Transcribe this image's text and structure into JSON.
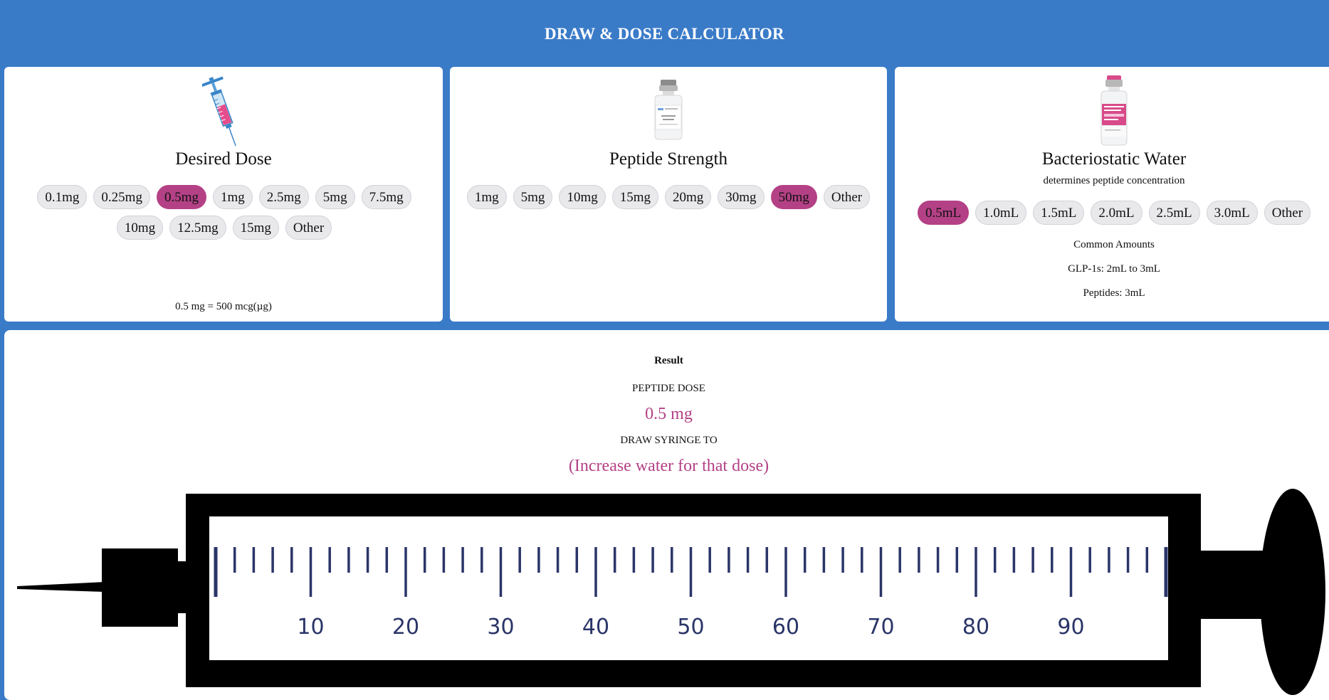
{
  "header": {
    "title": "DRAW & DOSE CALCULATOR"
  },
  "dose": {
    "title": "Desired Dose",
    "icon": "syringe-icon",
    "options": [
      "0.1mg",
      "0.25mg",
      "0.5mg",
      "1mg",
      "2.5mg",
      "5mg",
      "7.5mg",
      "10mg",
      "12.5mg",
      "15mg",
      "Other"
    ],
    "selected": "0.5mg",
    "conversion": "0.5 mg = 500 mcg(µg)"
  },
  "peptide": {
    "title": "Peptide Strength",
    "icon": "peptide-vial-icon",
    "options": [
      "1mg",
      "5mg",
      "10mg",
      "15mg",
      "20mg",
      "30mg",
      "50mg",
      "Other"
    ],
    "selected": "50mg"
  },
  "water": {
    "title": "Bacteriostatic Water",
    "subtitle": "determines peptide concentration",
    "icon": "bacteriostatic-water-vial-icon",
    "options": [
      "0.5mL",
      "1.0mL",
      "1.5mL",
      "2.0mL",
      "2.5mL",
      "3.0mL",
      "Other"
    ],
    "selected": "0.5mL",
    "common_heading": "Common Amounts",
    "common_glp": "GLP-1s: 2mL to 3mL",
    "common_peptides": "Peptides: 3mL"
  },
  "result": {
    "heading": "Result",
    "dose_label": "PEPTIDE DOSE",
    "dose_value": "0.5 mg",
    "draw_label": "DRAW SYRINGE TO",
    "draw_value": "(Increase water for that dose)",
    "syringe_labels": [
      "10",
      "20",
      "30",
      "40",
      "50",
      "60",
      "70",
      "80",
      "90"
    ]
  },
  "colors": {
    "header": "#3a7bc8",
    "accent": "#b44186",
    "tick": "#2a3568"
  }
}
